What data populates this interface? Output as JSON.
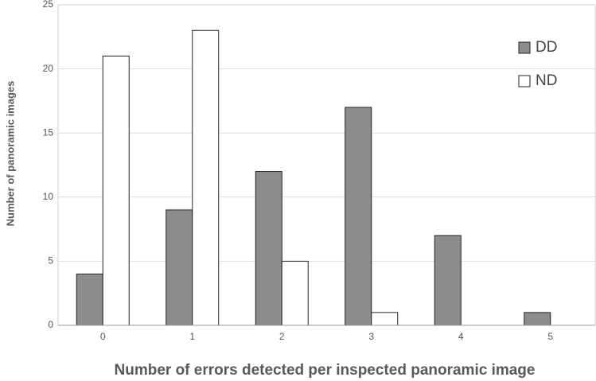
{
  "chart_data": {
    "type": "bar",
    "x_label": "Number of errors detected per inspected panoramic image",
    "y_label": "Number of panoramic images",
    "categories": [
      "0",
      "1",
      "2",
      "3",
      "4",
      "5"
    ],
    "series": [
      {
        "name": "DD",
        "color": "#8c8c8c",
        "values": [
          4,
          9,
          12,
          17,
          7,
          1
        ]
      },
      {
        "name": "ND",
        "color": "#ffffff",
        "values": [
          21,
          23,
          5,
          1,
          0,
          0
        ]
      }
    ],
    "ylim": [
      0,
      25
    ],
    "yticks": [
      0,
      5,
      10,
      15,
      20,
      25
    ],
    "grid": true,
    "legend": "top-right"
  }
}
